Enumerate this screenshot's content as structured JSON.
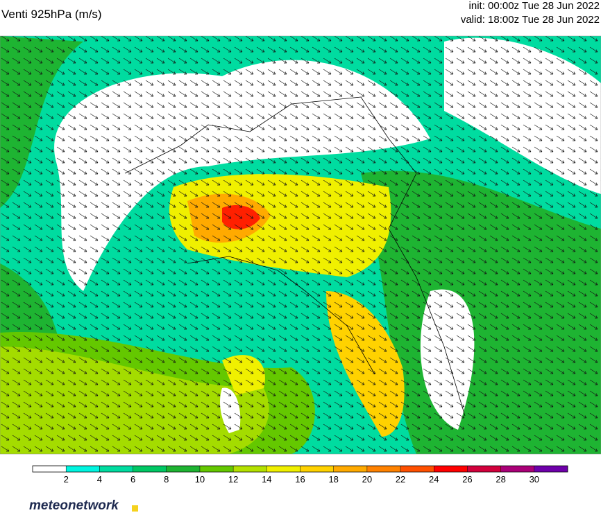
{
  "header": {
    "title": "Venti 925hPa (m/s)",
    "init": "init: 00:00z Tue 28 Jun 2022",
    "valid": "valid: 18:00z Tue 28 Jun 2022"
  },
  "legend": {
    "lim": [
      0,
      32
    ],
    "ticks": [
      2,
      4,
      6,
      8,
      10,
      12,
      14,
      16,
      18,
      20,
      22,
      24,
      26,
      28,
      30
    ],
    "colors": [
      "#ffffff",
      "#00f5e0",
      "#00dca0",
      "#00c864",
      "#1eb432",
      "#64c800",
      "#b4e100",
      "#f0f000",
      "#ffd200",
      "#ffaa00",
      "#ff8200",
      "#ff5000",
      "#ff0000",
      "#d2003c",
      "#aa0078",
      "#6e00aa"
    ]
  },
  "brand": "meteonetwork"
}
